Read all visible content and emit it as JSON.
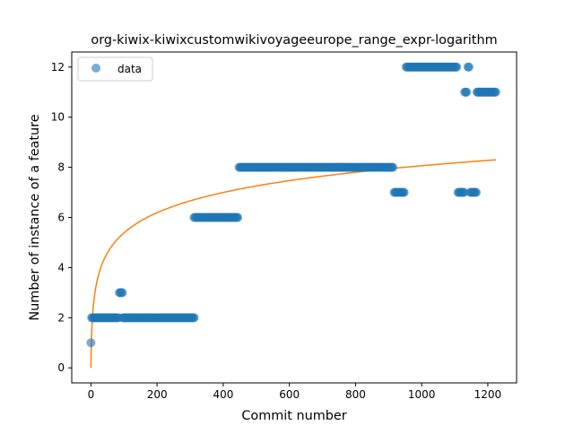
{
  "chart_data": {
    "type": "scatter",
    "title": "org-kiwix-kiwixcustomwikivoyageeurope_range_expr-logarithm",
    "xlabel": "Commit number",
    "ylabel": "Number of instance of a feature",
    "xlim": [
      -58,
      1287
    ],
    "ylim": [
      -0.6,
      12.6
    ],
    "xticks": [
      0,
      200,
      400,
      600,
      800,
      1000,
      1200
    ],
    "yticks": [
      0,
      2,
      4,
      6,
      8,
      10,
      12
    ],
    "grid": false,
    "legend": {
      "placement": "top-left",
      "entries": [
        "data"
      ]
    },
    "colors": {
      "data": "#1f77b4",
      "fit": "#ff7f0e"
    },
    "series": [
      {
        "name": "data",
        "kind": "points",
        "segments": [
          {
            "x_start": 0,
            "x_end": 2,
            "y": 1
          },
          {
            "x_start": 2,
            "x_end": 85,
            "y": 2
          },
          {
            "x_start": 86,
            "x_end": 95,
            "y": 3
          },
          {
            "x_start": 96,
            "x_end": 312,
            "y": 2
          },
          {
            "x_start": 312,
            "x_end": 445,
            "y": 6
          },
          {
            "x_start": 448,
            "x_end": 915,
            "y": 8
          },
          {
            "x_start": 917,
            "x_end": 948,
            "y": 7
          },
          {
            "x_start": 953,
            "x_end": 1108,
            "y": 12
          },
          {
            "x_start": 1110,
            "x_end": 1128,
            "y": 7
          },
          {
            "x_start": 1130,
            "x_end": 1138,
            "y": 11
          },
          {
            "x_start": 1140,
            "x_end": 1145,
            "y": 12
          },
          {
            "x_start": 1147,
            "x_end": 1165,
            "y": 7
          },
          {
            "x_start": 1167,
            "x_end": 1225,
            "y": 11
          }
        ]
      },
      {
        "kind": "fit",
        "x_start": 0,
        "x_end": 1225,
        "y_end": 8.3
      }
    ]
  }
}
